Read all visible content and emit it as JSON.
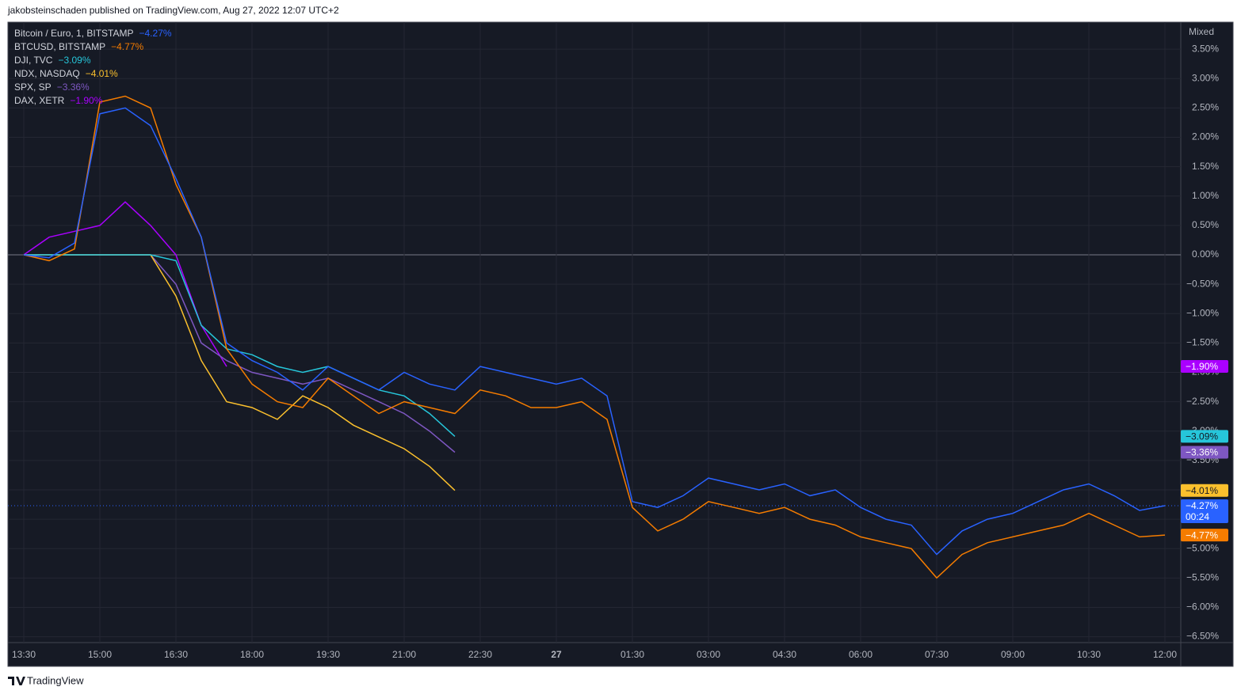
{
  "header": "jakobsteinschaden published on TradingView.com, Aug 27, 2022 12:07 UTC+2",
  "footer": "TradingView",
  "chart_data": {
    "type": "line",
    "scale_mode": "Mixed",
    "countdown": "00:24",
    "grid": true,
    "categories": [
      "13:30",
      null,
      null,
      "15:00",
      null,
      null,
      "16:30",
      null,
      null,
      "18:00",
      null,
      null,
      "19:30",
      null,
      null,
      "21:00",
      null,
      null,
      "22:30",
      null,
      null,
      "27",
      null,
      null,
      "01:30",
      null,
      null,
      "03:00",
      null,
      null,
      "04:30",
      null,
      null,
      "06:00",
      null,
      null,
      "07:30",
      null,
      null,
      "09:00",
      null,
      null,
      "10:30",
      null,
      null,
      "12:00"
    ],
    "ylim": [
      -6.6,
      3.96
    ],
    "yticks": [
      {
        "value": 3.5,
        "label": "3.50%"
      },
      {
        "value": 3,
        "label": "3.00%"
      },
      {
        "value": 2.5,
        "label": "2.50%"
      },
      {
        "value": 2,
        "label": "2.00%"
      },
      {
        "value": 1.5,
        "label": "1.50%"
      },
      {
        "value": 1,
        "label": "1.00%"
      },
      {
        "value": 0.5,
        "label": "0.50%"
      },
      {
        "value": 0,
        "label": "0.00%"
      },
      {
        "value": -0.5,
        "label": "−0.50%"
      },
      {
        "value": -1,
        "label": "−1.00%"
      },
      {
        "value": -1.5,
        "label": "−1.50%"
      },
      {
        "value": -2,
        "label": "−2.00%"
      },
      {
        "value": -2.5,
        "label": "−2.50%"
      },
      {
        "value": -3,
        "label": "−3.00%"
      },
      {
        "value": -3.5,
        "label": "−3.50%"
      },
      {
        "value": -4,
        "label": "−4.00%"
      },
      {
        "value": -4.5,
        "label": "−4.50%"
      },
      {
        "value": -5,
        "label": "−5.00%"
      },
      {
        "value": -5.5,
        "label": "−5.50%"
      },
      {
        "value": -6,
        "label": "−6.00%"
      },
      {
        "value": -6.5,
        "label": "−6.50%"
      }
    ],
    "series": [
      {
        "name": "Bitcoin / Euro, 1, BITSTAMP",
        "color": "#2962ff",
        "last_value": -4.27,
        "last_label": "−4.27%",
        "values": [
          0,
          -0.05,
          0.2,
          2.4,
          2.5,
          2.2,
          1.3,
          0.3,
          -1.5,
          -1.8,
          -2.0,
          -2.3,
          -1.9,
          -2.1,
          -2.3,
          -2.0,
          -2.2,
          -2.3,
          -1.9,
          -2.0,
          -2.1,
          -2.2,
          -2.1,
          -2.4,
          -4.2,
          -4.3,
          -4.1,
          -3.8,
          -3.9,
          -4.0,
          -3.9,
          -4.1,
          -4.0,
          -4.3,
          -4.5,
          -4.6,
          -5.1,
          -4.7,
          -4.5,
          -4.4,
          -4.2,
          -4.0,
          -3.9,
          -4.1,
          -4.35,
          -4.27
        ]
      },
      {
        "name": "BTCUSD, BITSTAMP",
        "color": "#f57c00",
        "last_value": -4.77,
        "last_label": "−4.77%",
        "values": [
          0,
          -0.1,
          0.1,
          2.6,
          2.7,
          2.5,
          1.2,
          0.3,
          -1.6,
          -2.2,
          -2.5,
          -2.6,
          -2.1,
          -2.4,
          -2.7,
          -2.5,
          -2.6,
          -2.7,
          -2.3,
          -2.4,
          -2.6,
          -2.6,
          -2.5,
          -2.8,
          -4.3,
          -4.7,
          -4.5,
          -4.2,
          -4.3,
          -4.4,
          -4.3,
          -4.5,
          -4.6,
          -4.8,
          -4.9,
          -5.0,
          -5.5,
          -5.1,
          -4.9,
          -4.8,
          -4.7,
          -4.6,
          -4.4,
          -4.6,
          -4.8,
          -4.77
        ]
      },
      {
        "name": "DJI, TVC",
        "color": "#26c6da",
        "last_value": -3.09,
        "last_label": "−3.09%",
        "values": [
          0,
          0,
          0,
          0,
          0,
          0,
          -0.1,
          -1.2,
          -1.6,
          -1.7,
          -1.9,
          -2.0,
          -1.9,
          -2.1,
          -2.3,
          -2.4,
          -2.7,
          -3.09,
          null,
          null,
          null,
          null,
          null,
          null,
          null,
          null,
          null,
          null,
          null,
          null,
          null,
          null,
          null,
          null,
          null,
          null,
          null,
          null,
          null,
          null,
          null,
          null,
          null,
          null,
          null,
          null
        ]
      },
      {
        "name": "NDX, NASDAQ",
        "color": "#fbc02d",
        "last_value": -4.01,
        "last_label": "−4.01%",
        "values": [
          0,
          0,
          0,
          0,
          0,
          0,
          -0.7,
          -1.8,
          -2.5,
          -2.6,
          -2.8,
          -2.4,
          -2.6,
          -2.9,
          -3.1,
          -3.3,
          -3.6,
          -4.01,
          null,
          null,
          null,
          null,
          null,
          null,
          null,
          null,
          null,
          null,
          null,
          null,
          null,
          null,
          null,
          null,
          null,
          null,
          null,
          null,
          null,
          null,
          null,
          null,
          null,
          null,
          null,
          null
        ]
      },
      {
        "name": "SPX, SP",
        "color": "#7e57c2",
        "last_value": -3.36,
        "last_label": "−3.36%",
        "values": [
          0,
          0,
          0,
          0,
          0,
          0,
          -0.5,
          -1.5,
          -1.8,
          -2.0,
          -2.1,
          -2.2,
          -2.1,
          -2.3,
          -2.5,
          -2.7,
          -3.0,
          -3.36,
          null,
          null,
          null,
          null,
          null,
          null,
          null,
          null,
          null,
          null,
          null,
          null,
          null,
          null,
          null,
          null,
          null,
          null,
          null,
          null,
          null,
          null,
          null,
          null,
          null,
          null,
          null,
          null
        ]
      },
      {
        "name": "DAX, XETR",
        "color": "#aa00ff",
        "last_value": -1.9,
        "last_label": "−1.90%",
        "values": [
          0,
          0.3,
          0.4,
          0.5,
          0.9,
          0.5,
          0.0,
          -1.2,
          -1.9,
          null,
          null,
          null,
          null,
          null,
          null,
          null,
          null,
          null,
          null,
          null,
          null,
          null,
          null,
          null,
          null,
          null,
          null,
          null,
          null,
          null,
          null,
          null,
          null,
          null,
          null,
          null,
          null,
          null,
          null,
          null,
          null,
          null,
          null,
          null,
          null,
          null
        ]
      }
    ]
  }
}
